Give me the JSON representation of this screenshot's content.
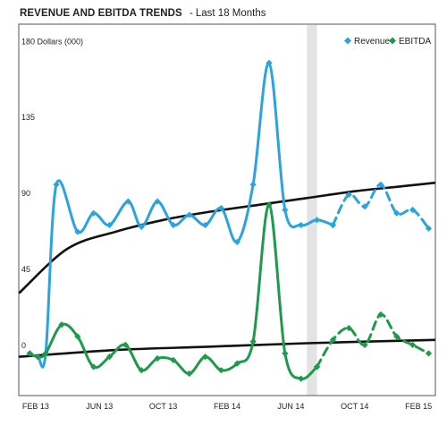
{
  "header": {
    "title": "REVENUE AND EBITDA TRENDS",
    "separator": "-",
    "subtitle": "Last 18 Months"
  },
  "colors": {
    "revenue": "#2aa3df",
    "ebitda": "#1e9a4c",
    "trend": "#111111",
    "highlight": "#e3e3e3",
    "plot_border": "#555555"
  },
  "chart_data": {
    "type": "line",
    "ylabel": "Dollars (000)",
    "ylim": [
      -25,
      195
    ],
    "yticks": [
      0,
      45,
      90,
      135,
      180
    ],
    "ytick_labels": [
      "0",
      "45",
      "90",
      "135",
      "180 Dollars (000)"
    ],
    "x_range_months": [
      "2013-01",
      "2015-03"
    ],
    "x_ticks": [
      {
        "x": "2013-02",
        "label": "FEB 13"
      },
      {
        "x": "2013-06",
        "label": "JUN 13"
      },
      {
        "x": "2013-10",
        "label": "OCT 13"
      },
      {
        "x": "2014-02",
        "label": "FEB 14"
      },
      {
        "x": "2014-06",
        "label": "JUN 14"
      },
      {
        "x": "2014-10",
        "label": "OCT 14"
      },
      {
        "x": "2015-02",
        "label": "FEB 15"
      }
    ],
    "highlight_band": [
      "2014-07-01",
      "2014-07-20"
    ],
    "legend": {
      "position": "top-right",
      "entries": [
        "Revenue",
        "EBITDA"
      ]
    },
    "series": [
      {
        "name": "Revenue",
        "style": "solid",
        "points": [
          [
            "2013-01-20",
            0
          ],
          [
            "2013-02-05",
            -2
          ],
          [
            "2013-02-20",
            0
          ],
          [
            "2013-03-10",
            100
          ],
          [
            "2013-04-20",
            72
          ],
          [
            "2013-05-20",
            83
          ],
          [
            "2013-06-20",
            76
          ],
          [
            "2013-07-25",
            90
          ],
          [
            "2013-08-20",
            75
          ],
          [
            "2013-09-20",
            90
          ],
          [
            "2013-10-20",
            76
          ],
          [
            "2013-11-20",
            82
          ],
          [
            "2013-12-20",
            76
          ],
          [
            "2014-01-20",
            86
          ],
          [
            "2014-02-20",
            66
          ],
          [
            "2014-03-20",
            100
          ],
          [
            "2014-04-20",
            172
          ],
          [
            "2014-05-20",
            85
          ],
          [
            "2014-06-20",
            76
          ],
          [
            "2014-07-20",
            79
          ],
          [
            "2014-08-20",
            76
          ]
        ]
      },
      {
        "name": "Revenue",
        "style": "dashed",
        "points": [
          [
            "2014-08-20",
            76
          ],
          [
            "2014-09-20",
            94
          ],
          [
            "2014-10-20",
            87
          ],
          [
            "2014-11-20",
            100
          ],
          [
            "2014-12-20",
            83
          ],
          [
            "2015-01-20",
            85
          ],
          [
            "2015-02-20",
            74
          ]
        ]
      },
      {
        "name": "EBITDA",
        "style": "solid",
        "points": [
          [
            "2013-01-20",
            0
          ],
          [
            "2013-02-05",
            -2
          ],
          [
            "2013-02-20",
            0
          ],
          [
            "2013-03-20",
            17
          ],
          [
            "2013-04-20",
            10
          ],
          [
            "2013-05-20",
            -8
          ],
          [
            "2013-06-20",
            -2
          ],
          [
            "2013-07-20",
            5
          ],
          [
            "2013-08-20",
            -10
          ],
          [
            "2013-09-20",
            -3
          ],
          [
            "2013-10-20",
            -4
          ],
          [
            "2013-11-20",
            -12
          ],
          [
            "2013-12-20",
            -2
          ],
          [
            "2014-01-20",
            -10
          ],
          [
            "2014-02-20",
            -6
          ],
          [
            "2014-03-20",
            7
          ],
          [
            "2014-04-20",
            88
          ],
          [
            "2014-05-20",
            0
          ],
          [
            "2014-06-20",
            -15
          ],
          [
            "2014-07-20",
            -8
          ]
        ]
      },
      {
        "name": "EBITDA",
        "style": "dashed",
        "points": [
          [
            "2014-07-20",
            -8
          ],
          [
            "2014-08-20",
            8
          ],
          [
            "2014-09-20",
            15
          ],
          [
            "2014-10-20",
            5
          ],
          [
            "2014-11-20",
            23
          ],
          [
            "2014-12-20",
            10
          ],
          [
            "2015-01-20",
            5
          ],
          [
            "2015-02-20",
            0
          ]
        ]
      }
    ],
    "trendlines": [
      {
        "for": "Revenue",
        "points": [
          [
            "2013-01-01",
            36
          ],
          [
            "2013-04-01",
            62
          ],
          [
            "2013-07-01",
            72
          ],
          [
            "2013-10-01",
            79
          ],
          [
            "2014-01-01",
            84
          ],
          [
            "2014-04-01",
            88
          ],
          [
            "2014-07-01",
            92
          ],
          [
            "2014-10-01",
            96
          ],
          [
            "2015-01-01",
            99
          ],
          [
            "2015-03-01",
            101
          ]
        ]
      },
      {
        "for": "EBITDA",
        "points": [
          [
            "2013-01-01",
            -2
          ],
          [
            "2013-07-01",
            2
          ],
          [
            "2014-01-01",
            4
          ],
          [
            "2014-07-01",
            6
          ],
          [
            "2015-03-01",
            8
          ]
        ]
      }
    ]
  }
}
